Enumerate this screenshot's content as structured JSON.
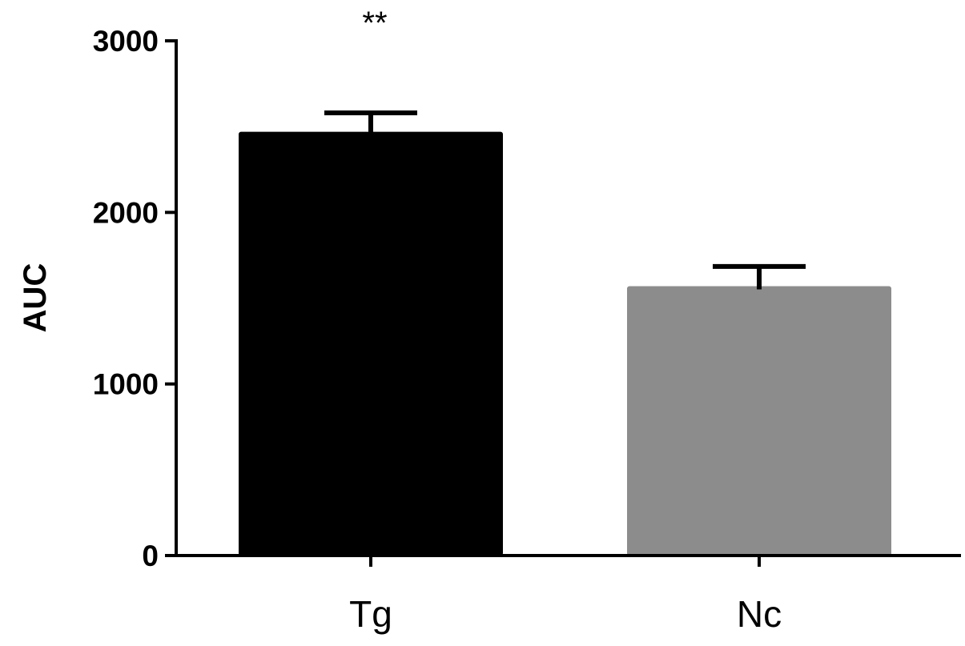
{
  "chart_data": {
    "type": "bar",
    "categories": [
      "Tg",
      "Nc"
    ],
    "values": [
      2470,
      1570
    ],
    "errors": [
      110,
      115
    ],
    "colors": [
      "#000000",
      "#8c8c8c"
    ],
    "annotations": [
      "**",
      ""
    ],
    "ylabel": "AUC",
    "xlabel": "",
    "ylim": [
      0,
      3000
    ],
    "yticks": [
      0,
      1000,
      2000,
      3000
    ],
    "ytick_labels": [
      "0",
      "1000",
      "2000",
      "3000"
    ],
    "grid": false,
    "legend": "none"
  }
}
